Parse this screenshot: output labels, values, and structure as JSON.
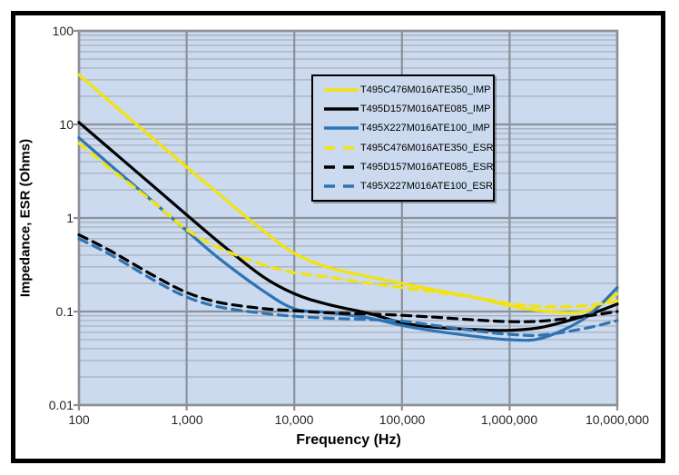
{
  "figure": {
    "background": "#ffffff",
    "border_color": "#000000"
  },
  "chart_data": {
    "type": "line",
    "title": "",
    "xlabel": "Frequency (Hz)",
    "ylabel": "Impedance, ESR (Ohms)",
    "x_scale": "log",
    "y_scale": "log",
    "xlim": [
      100,
      10000000
    ],
    "ylim": [
      0.01,
      100
    ],
    "x_ticks": [
      100,
      1000,
      10000,
      100000,
      1000000,
      10000000
    ],
    "x_tick_labels": [
      "100",
      "1,000",
      "10,000",
      "100,000",
      "1,000,000",
      "10,000,000"
    ],
    "y_ticks": [
      100,
      10,
      1,
      0.1,
      0.01
    ],
    "y_tick_labels": [
      "100",
      "10",
      "1",
      "0.1",
      "0.01"
    ],
    "grid": {
      "major": true,
      "minor_horizontal": true,
      "minor_vertical": false
    },
    "legend_position": "upper-center",
    "colors": {
      "plot_bg": "#cbdaef",
      "grid_major": "#8c919a",
      "grid_minor": "#aab0ba",
      "axis_line": "#8c919a",
      "tick_text": "#262626"
    },
    "x": [
      100,
      200,
      500,
      1000,
      2000,
      5000,
      10000,
      20000,
      50000,
      100000,
      200000,
      500000,
      1000000,
      2000000,
      5000000,
      10000000
    ],
    "series": [
      {
        "name": "T495C476M016ATE350_IMP",
        "color": "#f2e30e",
        "style": "solid",
        "values": [
          34,
          17,
          6.9,
          3.5,
          1.8,
          0.75,
          0.42,
          0.3,
          0.235,
          0.2,
          0.17,
          0.14,
          0.115,
          0.102,
          0.1,
          0.155
        ]
      },
      {
        "name": "T495D157M016ATE085_IMP",
        "color": "#000000",
        "style": "solid",
        "values": [
          10.5,
          5.3,
          2.15,
          1.08,
          0.55,
          0.24,
          0.155,
          0.12,
          0.095,
          0.076,
          0.068,
          0.064,
          0.063,
          0.068,
          0.09,
          0.12
        ]
      },
      {
        "name": "T495X227M016ATE100_IMP",
        "color": "#2e74b5",
        "style": "solid",
        "values": [
          7.2,
          3.6,
          1.46,
          0.73,
          0.37,
          0.17,
          0.107,
          0.098,
          0.085,
          0.071,
          0.062,
          0.054,
          0.05,
          0.052,
          0.085,
          0.18
        ]
      },
      {
        "name": "T495C476M016ATE350_ESR",
        "color": "#f2e30e",
        "style": "dashed",
        "values": [
          6.3,
          3.3,
          1.45,
          0.75,
          0.48,
          0.32,
          0.26,
          0.235,
          0.2,
          0.18,
          0.162,
          0.14,
          0.122,
          0.113,
          0.115,
          0.13
        ]
      },
      {
        "name": "T495D157M016ATE085_ESR",
        "color": "#000000",
        "style": "dashed",
        "values": [
          0.66,
          0.44,
          0.24,
          0.16,
          0.125,
          0.108,
          0.102,
          0.097,
          0.094,
          0.091,
          0.087,
          0.081,
          0.078,
          0.079,
          0.089,
          0.1
        ]
      },
      {
        "name": "T495X227M016ATE100_ESR",
        "color": "#2e74b5",
        "style": "dashed",
        "values": [
          0.6,
          0.4,
          0.215,
          0.143,
          0.112,
          0.096,
          0.089,
          0.085,
          0.082,
          0.079,
          0.071,
          0.062,
          0.057,
          0.056,
          0.066,
          0.08
        ]
      }
    ]
  }
}
